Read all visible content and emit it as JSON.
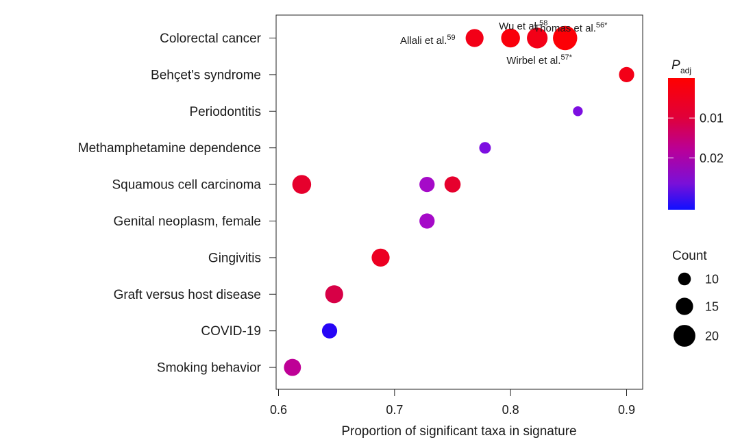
{
  "chart_data": {
    "type": "scatter",
    "title": "",
    "xlabel": "Proportion of significant taxa in signature",
    "ylabel": "",
    "xlim": [
      0.6,
      0.9
    ],
    "xticks": [
      0.6,
      0.7,
      0.8,
      0.9
    ],
    "xtick_labels": [
      "0.6",
      "0.7",
      "0.8",
      "0.9"
    ],
    "categories": [
      "Colorectal cancer",
      "Behçet's syndrome",
      "Periodontitis",
      "Methamphetamine dependence",
      "Squamous cell carcinoma",
      "Genital neoplasm, female",
      "Gingivitis",
      "Graft versus host disease",
      "COVID-19",
      "Smoking behavior"
    ],
    "points": [
      {
        "category": "Colorectal cancer",
        "x": 0.769,
        "count": 15,
        "p_adj": 0.002
      },
      {
        "category": "Colorectal cancer",
        "x": 0.8,
        "count": 16,
        "p_adj": 0.001
      },
      {
        "category": "Colorectal cancer",
        "x": 0.823,
        "count": 18,
        "p_adj": 0.002
      },
      {
        "category": "Colorectal cancer",
        "x": 0.847,
        "count": 22,
        "p_adj": 0.0005
      },
      {
        "category": "Behçet's syndrome",
        "x": 0.9,
        "count": 12,
        "p_adj": 0.002
      },
      {
        "category": "Periodontitis",
        "x": 0.858,
        "count": 6,
        "p_adj": 0.023
      },
      {
        "category": "Methamphetamine dependence",
        "x": 0.778,
        "count": 8,
        "p_adj": 0.023
      },
      {
        "category": "Squamous cell carcinoma",
        "x": 0.62,
        "count": 16,
        "p_adj": 0.004
      },
      {
        "category": "Squamous cell carcinoma",
        "x": 0.728,
        "count": 12,
        "p_adj": 0.019
      },
      {
        "category": "Squamous cell carcinoma",
        "x": 0.75,
        "count": 13,
        "p_adj": 0.004
      },
      {
        "category": "Genital neoplasm, female",
        "x": 0.728,
        "count": 12,
        "p_adj": 0.019
      },
      {
        "category": "Gingivitis",
        "x": 0.688,
        "count": 15,
        "p_adj": 0.003
      },
      {
        "category": "Graft versus host disease",
        "x": 0.648,
        "count": 15,
        "p_adj": 0.008
      },
      {
        "category": "COVID-19",
        "x": 0.644,
        "count": 12,
        "p_adj": 0.03
      },
      {
        "category": "Smoking behavior",
        "x": 0.612,
        "count": 14,
        "p_adj": 0.014
      }
    ],
    "annotations": [
      {
        "text": "Allali et al.",
        "sup": "59",
        "category": "Colorectal cancer",
        "x": 0.769
      },
      {
        "text": "Wu et al.",
        "sup": "58",
        "category": "Colorectal cancer",
        "x": 0.8
      },
      {
        "text": "Wirbel et al.",
        "sup": "57*",
        "category": "Colorectal cancer",
        "x": 0.823
      },
      {
        "text": "Thomas et al.",
        "sup": "56*",
        "category": "Colorectal cancer",
        "x": 0.847
      }
    ],
    "color_legend": {
      "title": "P",
      "title_sub": "adj",
      "domain": [
        0.0,
        0.033
      ],
      "ticks": [
        0.01,
        0.02
      ],
      "tick_labels": [
        "0.01",
        "0.02"
      ],
      "colors": [
        "#ff0000",
        "#cc0066",
        "#8800cc",
        "#0000ff"
      ]
    },
    "size_legend": {
      "title": "Count",
      "values": [
        10,
        15,
        20
      ],
      "labels": [
        "10",
        "15",
        "20"
      ]
    },
    "grid": false
  }
}
